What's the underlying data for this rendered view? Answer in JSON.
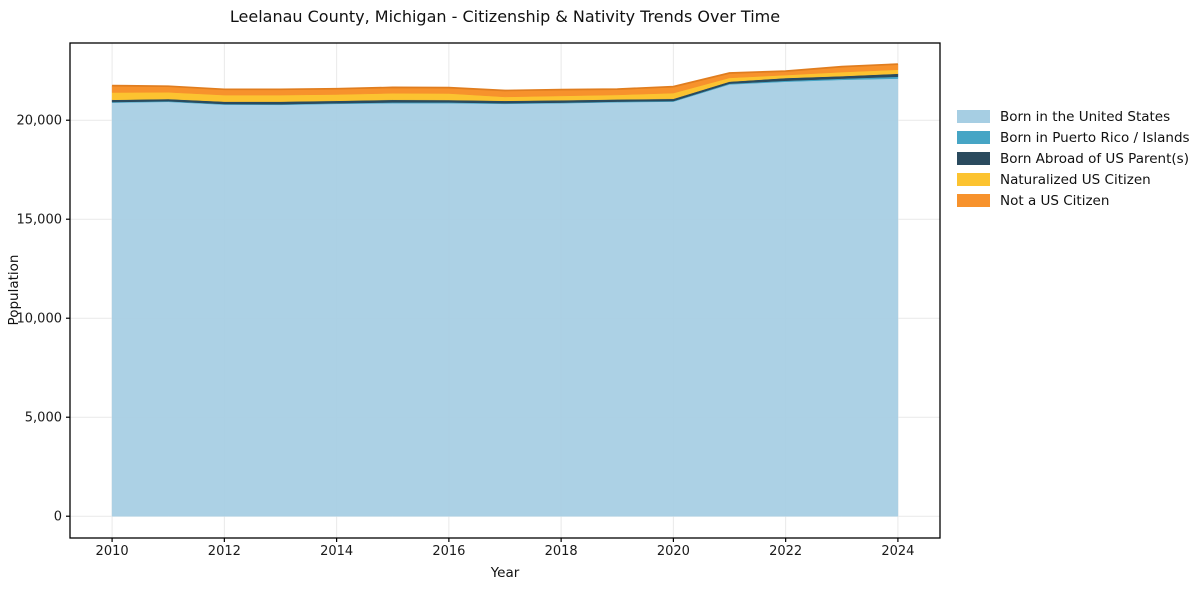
{
  "figure": {
    "background": "#ffffff"
  },
  "chart_data": {
    "type": "area",
    "stacked": true,
    "title": "Leelanau County, Michigan - Citizenship & Nativity Trends Over Time",
    "xlabel": "Year",
    "ylabel": "Population",
    "x": [
      2010,
      2011,
      2012,
      2013,
      2014,
      2015,
      2016,
      2017,
      2018,
      2019,
      2020,
      2021,
      2022,
      2023,
      2024
    ],
    "series": [
      {
        "name": "Born in the United States",
        "color": "#a6cee3",
        "values": [
          20890,
          20930,
          20790,
          20780,
          20830,
          20860,
          20860,
          20830,
          20860,
          20910,
          20940,
          21810,
          21945,
          22040,
          22100
        ]
      },
      {
        "name": "Born in Puerto Rico / Islands",
        "color": "#46a5c5",
        "values": [
          30,
          30,
          30,
          30,
          30,
          40,
          40,
          30,
          30,
          30,
          30,
          40,
          50,
          60,
          100
        ]
      },
      {
        "name": "Born Abroad of US Parent(s)",
        "color": "#2a4a5e",
        "values": [
          110,
          110,
          120,
          130,
          120,
          130,
          120,
          120,
          120,
          110,
          110,
          100,
          135,
          130,
          150
        ]
      },
      {
        "name": "Naturalized US Citizen",
        "color": "#fcc330",
        "values": [
          370,
          340,
          330,
          330,
          320,
          330,
          330,
          200,
          220,
          230,
          290,
          185,
          150,
          200,
          200
        ]
      },
      {
        "name": "Not a US Citizen",
        "color": "#f7922c",
        "values": [
          350,
          310,
          290,
          290,
          290,
          300,
          300,
          320,
          315,
          290,
          330,
          250,
          200,
          280,
          285
        ]
      }
    ],
    "xlim": [
      2009.25,
      2024.75
    ],
    "ylim": [
      -1100,
      23900
    ],
    "xticks": [
      2010,
      2012,
      2014,
      2016,
      2018,
      2020,
      2022,
      2024
    ],
    "xtick_labels": [
      "2010",
      "2012",
      "2014",
      "2016",
      "2018",
      "2020",
      "2022",
      "2024"
    ],
    "yticks": [
      0,
      5000,
      10000,
      15000,
      20000
    ],
    "ytick_labels": [
      "0",
      "5,000",
      "10,000",
      "15,000",
      "20,000"
    ],
    "grid": true,
    "grid_color": "#e9e9e9",
    "axis_color": "#000000",
    "text_color": "#1a1a1a",
    "stack_edge_color": "#e07d1f",
    "legend_position": "right"
  }
}
